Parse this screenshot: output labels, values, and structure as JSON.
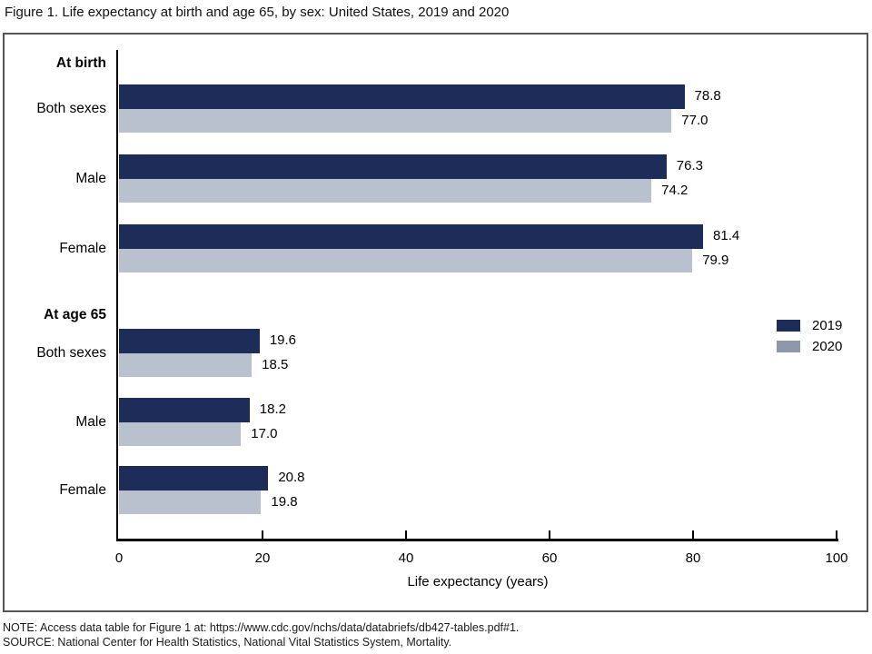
{
  "title": "Figure 1. Life expectancy at birth and age 65, by sex: United States, 2019 and 2020",
  "chart_data": {
    "type": "bar",
    "orientation": "horizontal",
    "xlabel": "Life expectancy (years)",
    "xlim": [
      0,
      100
    ],
    "xticks": [
      0,
      20,
      40,
      60,
      80,
      100
    ],
    "grid": false,
    "legend_position": "middle-right",
    "series_names": [
      "2019",
      "2020"
    ],
    "groups": [
      {
        "header": "At birth",
        "rows": [
          {
            "label": "Both sexes",
            "values": [
              78.8,
              77.0
            ]
          },
          {
            "label": "Male",
            "values": [
              76.3,
              74.2
            ]
          },
          {
            "label": "Female",
            "values": [
              81.4,
              79.9
            ]
          }
        ]
      },
      {
        "header": "At age 65",
        "rows": [
          {
            "label": "Both sexes",
            "values": [
              19.6,
              18.5
            ]
          },
          {
            "label": "Male",
            "values": [
              18.2,
              17.0
            ]
          },
          {
            "label": "Female",
            "values": [
              20.8,
              19.8
            ]
          }
        ]
      }
    ],
    "colors": {
      "series_2019": "#1d2c58",
      "series_2020": "#b9c1ce",
      "legend_2020": "#8d98ad",
      "axis": "#000000",
      "frame_border": "#555555"
    }
  },
  "notes": {
    "note": "NOTE: Access data table for Figure 1 at: https://www.cdc.gov/nchs/data/databriefs/db427-tables.pdf#1.",
    "source": "SOURCE: National Center for Health Statistics, National Vital Statistics System, Mortality."
  }
}
